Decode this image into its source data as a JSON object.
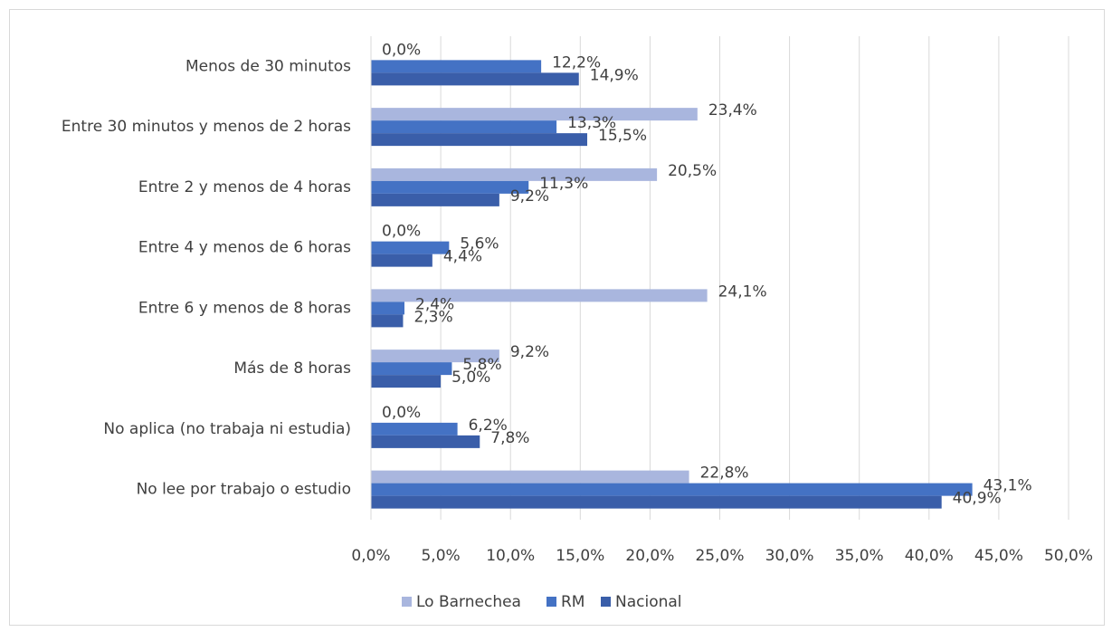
{
  "chart_data": {
    "type": "hbar",
    "categories": [
      "Menos de 30 minutos",
      "Entre 30 minutos y menos de 2 horas",
      "Entre 2  y menos de 4 horas",
      "Entre 4 y menos de 6 horas",
      "Entre 6 y menos de 8 horas",
      "Más de 8 horas",
      "No aplica (no trabaja ni estudia)",
      "No lee por trabajo o estudio"
    ],
    "series": [
      {
        "name": "Lo Barnechea",
        "color": "#a9b6de",
        "values": [
          0,
          23.4,
          20.5,
          0,
          24.1,
          9.2,
          0,
          22.8
        ],
        "value_labels": [
          "0,0%",
          "23,4%",
          "20,5%",
          "0,0%",
          "24,1%",
          "9,2%",
          "0,0%",
          "22,8%"
        ]
      },
      {
        "name": "RM",
        "color": "#4472c4",
        "values": [
          12.2,
          13.3,
          11.3,
          5.6,
          2.4,
          5.8,
          6.2,
          43.1
        ],
        "value_labels": [
          "12,2%",
          "13,3%",
          "11,3%",
          "5,6%",
          "2,4%",
          "5,8%",
          "6,2%",
          "43,1%"
        ]
      },
      {
        "name": "Nacional",
        "color": "#3a5ea9",
        "values": [
          14.9,
          15.5,
          9.2,
          4.4,
          2.3,
          5.0,
          7.8,
          40.9
        ],
        "value_labels": [
          "14,9%",
          "15,5%",
          "9,2%",
          "4,4%",
          "2,3%",
          "5,0%",
          "7,8%",
          "40,9%"
        ]
      }
    ],
    "xlim": [
      0,
      50
    ],
    "xticks": [
      {
        "value": 0,
        "label": "0,0%"
      },
      {
        "value": 5,
        "label": "5,0%"
      },
      {
        "value": 10,
        "label": "10,0%"
      },
      {
        "value": 15,
        "label": "15,0%"
      },
      {
        "value": 20,
        "label": "20,0%"
      },
      {
        "value": 25,
        "label": "25,0%"
      },
      {
        "value": 30,
        "label": "30,0%"
      },
      {
        "value": 35,
        "label": "35,0%"
      },
      {
        "value": 40,
        "label": "40,0%"
      },
      {
        "value": 45,
        "label": "45,0%"
      },
      {
        "value": 50,
        "label": "50,0%"
      }
    ],
    "grid": true,
    "legend": "bottom"
  }
}
